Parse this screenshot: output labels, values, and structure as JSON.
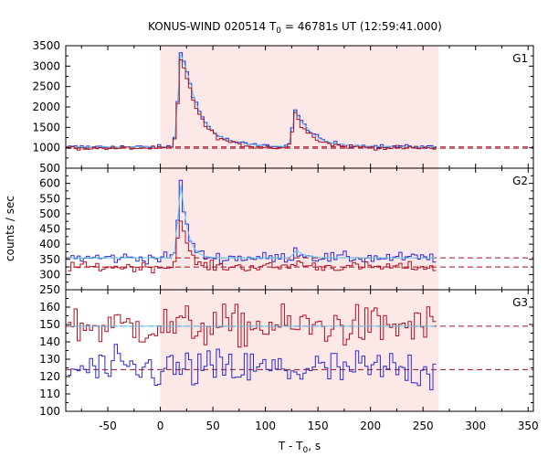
{
  "chart_data": {
    "type": "line",
    "title": "KONUS-WIND 020514 T",
    "title_sub": "0",
    "title_rest": " = 46781s UT (12:59:41.000)",
    "ylabel": "counts / sec",
    "xlabel_main": "T - T",
    "xlabel_sub": "0",
    "xlabel_rest": ", s",
    "xlim": [
      -90,
      355
    ],
    "x_ticks": [
      -50,
      0,
      50,
      100,
      150,
      200,
      250,
      300,
      350
    ],
    "shaded_interval": [
      0,
      265
    ],
    "colors": {
      "shade": "#fde8e8",
      "blue": "#2a2ad0",
      "red": "#b01020",
      "cyan": "#66ccee",
      "dash": "#a01020"
    },
    "panels": [
      {
        "label": "G1",
        "ylim": [
          500,
          3500
        ],
        "y_ticks": [
          500,
          1000,
          1500,
          2000,
          2500,
          3000,
          3500
        ],
        "background_blue": 1020,
        "background_red": 990,
        "bin_width": 2.944,
        "x_start": -88,
        "x_end": 265,
        "peaks": [
          {
            "t": 20,
            "amp": 2200,
            "rise": 3,
            "decay": 12
          },
          {
            "t": 28,
            "amp": 500,
            "rise": 5,
            "decay": 25
          },
          {
            "t": 129,
            "amp": 900,
            "rise": 3,
            "decay": 9
          },
          {
            "t": 140,
            "amp": 200,
            "rise": 5,
            "decay": 25
          }
        ],
        "noise_blue": 25,
        "noise_red": 25,
        "series": [
          {
            "color": "blue",
            "scale": 1.0
          },
          {
            "color": "red",
            "scale": 0.93
          }
        ]
      },
      {
        "label": "G2",
        "ylim": [
          250,
          650
        ],
        "y_ticks": [
          250,
          300,
          350,
          400,
          450,
          500,
          550,
          600
        ],
        "background_blue": 355,
        "background_red": 325,
        "bin_width": 2.944,
        "x_start": -88,
        "x_end": 265,
        "peaks": [
          {
            "t": 20,
            "amp": 245,
            "rise": 3,
            "decay": 6
          },
          {
            "t": 130,
            "amp": 25,
            "rise": 3,
            "decay": 8
          }
        ],
        "noise_blue": 9,
        "noise_red": 8,
        "series": [
          {
            "color": "blue",
            "scale": 1.0
          },
          {
            "color": "red",
            "scale": 0.72
          }
        ]
      },
      {
        "label": "G3",
        "ylim": [
          100,
          170
        ],
        "y_ticks": [
          100,
          110,
          120,
          130,
          140,
          150,
          160
        ],
        "background_blue": 124,
        "background_red": 149,
        "bin_width": 2.944,
        "x_start": -88,
        "x_end": 265,
        "peaks": [],
        "noise_blue": 6,
        "noise_red": 6,
        "series": [
          {
            "color": "red",
            "scale": 1.0
          },
          {
            "color": "blue",
            "scale": 1.0
          }
        ]
      }
    ]
  }
}
